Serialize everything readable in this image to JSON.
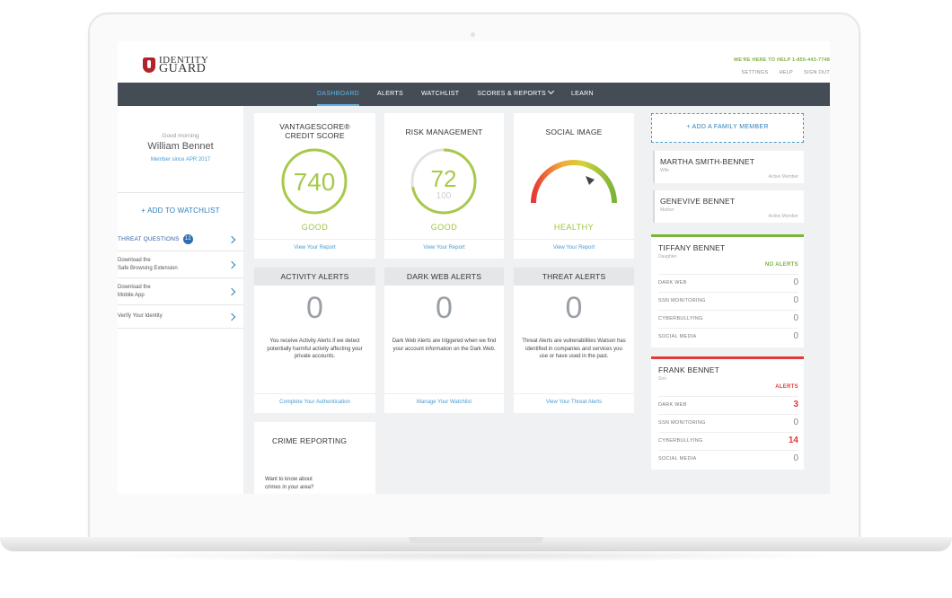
{
  "brand": {
    "line1": "IDENTITY",
    "line2": "GUARD"
  },
  "header": {
    "help": "WE'RE HERE TO HELP 1-855-443-7748",
    "links": [
      "SETTINGS",
      "HELP",
      "SIGN OUT"
    ]
  },
  "nav": {
    "items": [
      "DASHBOARD",
      "ALERTS",
      "WATCHLIST",
      "SCORES & REPORTS",
      "LEARN"
    ],
    "active": "DASHBOARD"
  },
  "sidebar": {
    "greeting": "Good morning",
    "user": "William Bennet",
    "member_since": "Member since APR 2017",
    "add_watchlist": "+ ADD TO WATCHLIST",
    "threat_questions": "THREAT QUESTIONS",
    "threat_count": "12",
    "items": [
      {
        "line1": "Download the",
        "line2": "Safe Browsing Extension"
      },
      {
        "line1": "Download the",
        "line2": "Mobile App"
      },
      {
        "line1": "Verify Your Identity",
        "line2": ""
      }
    ]
  },
  "cards": {
    "credit": {
      "title1": "VANTAGESCORE®",
      "title2": "CREDIT SCORE",
      "value": "740",
      "status": "GOOD",
      "link": "View Your Report",
      "ring_fraction": 1.0
    },
    "risk": {
      "title": "RISK MANAGEMENT",
      "value": "72",
      "max": "100",
      "status": "GOOD",
      "link": "View Your Report",
      "fraction": 0.72
    },
    "social": {
      "title": "SOCIAL IMAGE",
      "status": "HEALTHY",
      "link": "View Your Report"
    }
  },
  "alerts": {
    "activity": {
      "title": "ACTIVITY ALERTS",
      "count": "0",
      "desc": "You receive Activity Alerts if we detect potentially harmful activity affecting your private accounts.",
      "link": "Complete Your Authentication"
    },
    "darkweb": {
      "title": "DARK WEB ALERTS",
      "count": "0",
      "desc": "Dark Web Alerts are triggered when we find your account information on the Dark Web.",
      "link": "Manage Your Watchlist"
    },
    "threat": {
      "title": "THREAT ALERTS",
      "count": "0",
      "desc": "Threat Alerts are vulnerabilities Watson has identified in companies and services you use or have used in the past.",
      "link": "View Your Threat Alerts"
    }
  },
  "crime": {
    "title": "CRIME REPORTING",
    "body1": "Want to know about",
    "body2": "crimes in your area?"
  },
  "family": {
    "add": "+ ADD A FAMILY MEMBER",
    "members": [
      {
        "name": "MARTHA SMITH-BENNET",
        "role": "Wife",
        "status": "Active Member"
      },
      {
        "name": "GENEVIVE BENNET",
        "role": "Mother",
        "status": "Active Member"
      }
    ],
    "monitored": [
      {
        "name": "TIFFANY BENNET",
        "role": "Daughter",
        "flag": "NO ALERTS",
        "flag_color": "#7bb33d",
        "rows": [
          {
            "label": "DARK WEB",
            "value": "0"
          },
          {
            "label": "SSN MONITORING",
            "value": "0"
          },
          {
            "label": "CYBERBULLYING",
            "value": "0"
          },
          {
            "label": "SOCIAL MEDIA",
            "value": "0"
          }
        ]
      },
      {
        "name": "FRANK BENNET",
        "role": "Son",
        "flag": "ALERTS",
        "flag_color": "#e53935",
        "rows": [
          {
            "label": "DARK WEB",
            "value": "3"
          },
          {
            "label": "SSN MONITORING",
            "value": "0"
          },
          {
            "label": "CYBERBULLYING",
            "value": "14"
          },
          {
            "label": "SOCIAL MEDIA",
            "value": "0"
          }
        ]
      }
    ]
  },
  "colors": {
    "nav_bg": "#444d55",
    "accent_blue": "#4a9ad1",
    "good_green": "#9fc43a",
    "alert_red": "#e53935"
  }
}
